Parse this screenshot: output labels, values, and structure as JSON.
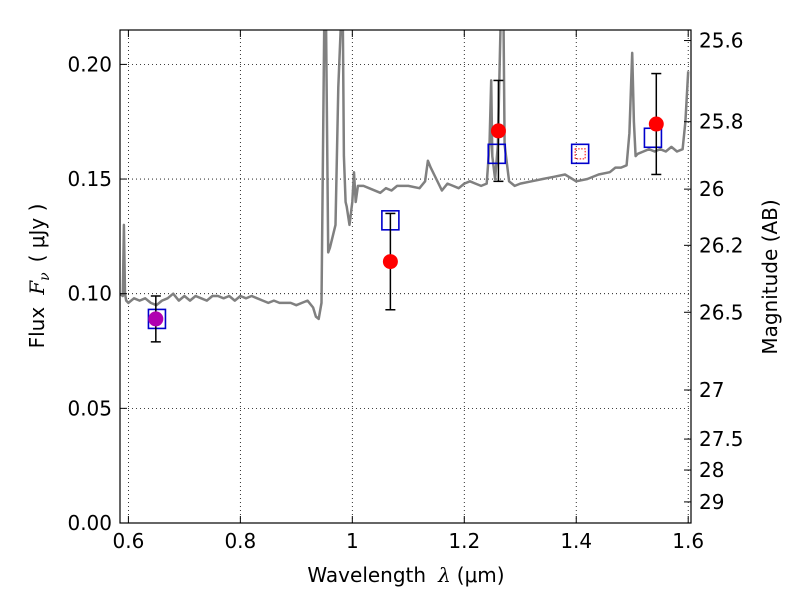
{
  "chart_data": {
    "type": "line",
    "xlabel_text": "Wavelength",
    "xlabel_symbol": "λ",
    "xlabel_unit": "(μm)",
    "ylabel_text": "Flux",
    "ylabel_symbol": "F",
    "ylabel_sub": "ν",
    "ylabel_unit": "( μJy )",
    "y2label": "Magnitude (AB)",
    "xlim": [
      0.585,
      1.605
    ],
    "ylim": [
      0.0,
      0.215
    ],
    "grid": true,
    "x_ticks": [
      0.6,
      0.8,
      1.0,
      1.2,
      1.4,
      1.6
    ],
    "x_tick_labels": [
      "0.6",
      "0.8",
      "1",
      "1.2",
      "1.4",
      "1.6"
    ],
    "y_ticks": [
      0.0,
      0.05,
      0.1,
      0.15,
      0.2
    ],
    "y_tick_labels": [
      "0.00",
      "0.05",
      "0.10",
      "0.15",
      "0.20"
    ],
    "y2_ticks": [
      {
        "label": "25.6",
        "flux": 0.2104
      },
      {
        "label": "25.8",
        "flux": 0.175
      },
      {
        "label": "26",
        "flux": 0.1456
      },
      {
        "label": "26.2",
        "flux": 0.1211
      },
      {
        "label": "26.5",
        "flux": 0.0919
      },
      {
        "label": "27",
        "flux": 0.058
      },
      {
        "label": "27.5",
        "flux": 0.0366
      },
      {
        "label": "28",
        "flux": 0.0231
      },
      {
        "label": "29",
        "flux": 0.0092
      }
    ],
    "colors": {
      "spectrum": "#808080",
      "observed": "#ff0000",
      "model": "#0000cc",
      "grid": "#000000",
      "overlap": "#b000b0"
    },
    "series": [
      {
        "kind": "spectrum",
        "x": [
          0.585,
          0.59,
          0.592,
          0.594,
          0.596,
          0.6,
          0.61,
          0.62,
          0.63,
          0.64,
          0.65,
          0.66,
          0.67,
          0.68,
          0.69,
          0.7,
          0.71,
          0.72,
          0.73,
          0.74,
          0.75,
          0.76,
          0.77,
          0.78,
          0.79,
          0.8,
          0.81,
          0.82,
          0.83,
          0.84,
          0.85,
          0.86,
          0.87,
          0.88,
          0.89,
          0.9,
          0.91,
          0.92,
          0.93,
          0.935,
          0.94,
          0.945,
          0.95,
          0.953,
          0.957,
          0.96,
          0.965,
          0.97,
          0.975,
          0.98,
          0.983,
          0.985,
          0.988,
          0.99,
          0.995,
          1.0,
          1.003,
          1.006,
          1.01,
          1.02,
          1.03,
          1.05,
          1.06,
          1.07,
          1.08,
          1.1,
          1.12,
          1.13,
          1.135,
          1.14,
          1.15,
          1.16,
          1.17,
          1.18,
          1.19,
          1.2,
          1.21,
          1.22,
          1.23,
          1.24,
          1.245,
          1.248,
          1.25,
          1.255,
          1.26,
          1.265,
          1.27,
          1.272,
          1.28,
          1.29,
          1.3,
          1.32,
          1.34,
          1.36,
          1.38,
          1.4,
          1.42,
          1.44,
          1.46,
          1.47,
          1.48,
          1.49,
          1.495,
          1.5,
          1.503,
          1.506,
          1.51,
          1.52,
          1.53,
          1.54,
          1.55,
          1.56,
          1.57,
          1.58,
          1.59,
          1.595,
          1.6
        ],
        "y": [
          0.1,
          0.099,
          0.13,
          0.1,
          0.097,
          0.096,
          0.098,
          0.097,
          0.098,
          0.096,
          0.095,
          0.097,
          0.098,
          0.1,
          0.097,
          0.099,
          0.097,
          0.099,
          0.098,
          0.097,
          0.099,
          0.099,
          0.098,
          0.099,
          0.097,
          0.099,
          0.098,
          0.099,
          0.098,
          0.097,
          0.096,
          0.097,
          0.096,
          0.096,
          0.096,
          0.095,
          0.096,
          0.097,
          0.094,
          0.09,
          0.089,
          0.096,
          0.22,
          0.22,
          0.118,
          0.12,
          0.125,
          0.13,
          0.19,
          0.22,
          0.22,
          0.16,
          0.14,
          0.138,
          0.13,
          0.14,
          0.153,
          0.14,
          0.147,
          0.147,
          0.146,
          0.144,
          0.146,
          0.145,
          0.147,
          0.147,
          0.146,
          0.149,
          0.158,
          0.155,
          0.15,
          0.145,
          0.148,
          0.147,
          0.146,
          0.148,
          0.149,
          0.148,
          0.147,
          0.148,
          0.165,
          0.193,
          0.16,
          0.15,
          0.165,
          0.22,
          0.22,
          0.165,
          0.149,
          0.147,
          0.148,
          0.149,
          0.15,
          0.151,
          0.152,
          0.149,
          0.15,
          0.152,
          0.153,
          0.155,
          0.155,
          0.156,
          0.17,
          0.205,
          0.175,
          0.16,
          0.161,
          0.162,
          0.163,
          0.162,
          0.163,
          0.162,
          0.164,
          0.162,
          0.163,
          0.175,
          0.197
        ]
      },
      {
        "kind": "observed",
        "x": [
          0.649,
          1.068,
          1.261,
          1.543
        ],
        "y": [
          0.089,
          0.114,
          0.171,
          0.174
        ],
        "err": [
          0.01,
          0.021,
          0.022,
          0.022
        ]
      },
      {
        "kind": "model",
        "x": [
          0.651,
          1.068,
          1.258,
          1.407,
          1.537
        ],
        "y": [
          0.089,
          0.132,
          0.161,
          0.161,
          0.168
        ]
      }
    ]
  }
}
